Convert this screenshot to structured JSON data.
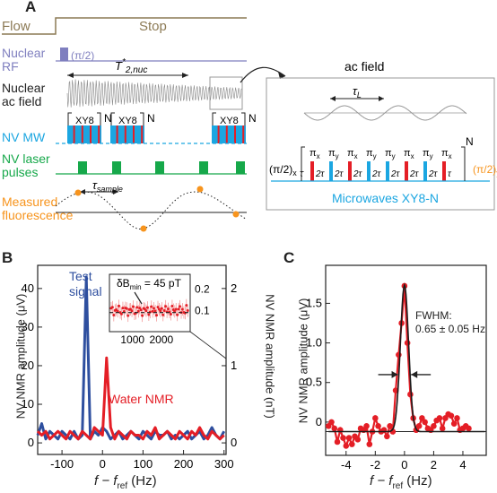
{
  "colors": {
    "nuclear_rf": "#7f7fbf",
    "nv_mw": "#1ba6e1",
    "laser": "#16a84a",
    "fluor": "#f7941d",
    "red": "#e41e26",
    "blue": "#2e4f9f",
    "stop": "#8c7a55"
  },
  "panel_a": {
    "label": "A",
    "flow": "Flow",
    "stop": "Stop",
    "rows": {
      "rf": [
        "Nuclear",
        "RF"
      ],
      "ac": [
        "Nuclear",
        "ac field"
      ],
      "mw": "NV MW",
      "laser": [
        "NV laser",
        "pulses"
      ],
      "fluor": [
        "Measured",
        "fluorescence"
      ]
    },
    "t2_label": "T",
    "t2_sup": "*",
    "t2_sub": "2,nuc",
    "pi2": "(π/2)",
    "xy8": "XY8",
    "n": "N",
    "tau_sample": "τ",
    "tau_sample_sub": "sample"
  },
  "inset_a": {
    "title": "ac field",
    "tau_l": "τ",
    "tau_l_sub": "L",
    "sequence_caption": "Microwaves XY8-N",
    "pulses": [
      "π",
      "π",
      "π",
      "π",
      "π",
      "π",
      "π",
      "π"
    ],
    "pulse_axes": [
      "x",
      "y",
      "x",
      "y",
      "y",
      "x",
      "y",
      "x"
    ],
    "tau": "τ",
    "two_tau": "2τ",
    "pi2x": "(π/2)x",
    "pi2y": "(π/2)y",
    "n": "N"
  },
  "panel_b": {
    "label": "B",
    "ylabel_left": "NV NMR amplitude (μV)",
    "ylabel_right": "NV NMR amplitude (nT)",
    "xlabel": "f − f",
    "xlabel_sub": "ref",
    "xlabel_unit": " (Hz)",
    "legend_test": [
      "Test",
      "signal"
    ],
    "legend_water": "Water NMR",
    "inset_label": "δB",
    "inset_label_sub": "min",
    "inset_label_value": " = 45 pT",
    "inset_xticks": [
      "1000",
      "2000"
    ],
    "inset_yticks": [
      "0.1",
      "0.2"
    ]
  },
  "panel_c": {
    "label": "C",
    "ylabel": "NV NMR amplitude (μV)",
    "xlabel": "f − f",
    "xlabel_sub": "ref",
    "xlabel_unit": " (Hz)",
    "fwhm_label": "FWHM:",
    "fwhm_value": "0.65 ± 0.05 Hz"
  },
  "chart_data": [
    {
      "type": "line",
      "id": "B",
      "xlim": [
        -160,
        305
      ],
      "ylim_left": [
        -3,
        46
      ],
      "ylim_right": [
        -0.15,
        2.3
      ],
      "xticks": [
        -100,
        0,
        100,
        200,
        300
      ],
      "yticks_left": [
        0,
        10,
        20,
        30,
        40
      ],
      "yticks_right": [
        0,
        1,
        2
      ],
      "series": [
        {
          "name": "Test signal",
          "color": "#2e4f9f",
          "x": [
            -160,
            -150,
            -140,
            -130,
            -120,
            -110,
            -100,
            -90,
            -80,
            -70,
            -60,
            -50,
            -40,
            -30,
            -20,
            -10,
            0,
            10,
            20,
            30,
            40,
            50,
            60,
            70,
            80,
            90,
            100,
            110,
            120,
            130,
            140,
            150,
            160,
            170,
            180,
            190,
            200,
            210,
            220,
            230,
            240,
            250,
            260,
            270,
            280,
            290,
            300
          ],
          "y": [
            2,
            5,
            1,
            3,
            2,
            1,
            3,
            2,
            1,
            3,
            1,
            2,
            43,
            1,
            3,
            2,
            4,
            3,
            1,
            2,
            3,
            1,
            2,
            3,
            2,
            1,
            3,
            2,
            1,
            3,
            2,
            2,
            3,
            1,
            2,
            1,
            2,
            3,
            1,
            2,
            3,
            1,
            2,
            4,
            2,
            1,
            3
          ]
        },
        {
          "name": "Water NMR",
          "color": "#e41e26",
          "x": [
            -160,
            -150,
            -140,
            -130,
            -120,
            -110,
            -100,
            -90,
            -80,
            -70,
            -60,
            -50,
            -40,
            -30,
            -20,
            -10,
            0,
            10,
            20,
            30,
            40,
            50,
            60,
            70,
            80,
            90,
            100,
            110,
            120,
            130,
            140,
            150,
            160,
            170,
            180,
            190,
            200,
            210,
            220,
            230,
            240,
            250,
            260,
            270,
            280,
            290,
            300
          ],
          "y": [
            3,
            2,
            3,
            1,
            2,
            3,
            2,
            1,
            3,
            2,
            1,
            3,
            2,
            1,
            4,
            3,
            2,
            22,
            4,
            1,
            3,
            2,
            1,
            3,
            2,
            2,
            1,
            3,
            2,
            4,
            1,
            2,
            3,
            2,
            1,
            3,
            2,
            1,
            3,
            2,
            4,
            2,
            1,
            3,
            2,
            1,
            2
          ]
        }
      ]
    },
    {
      "type": "scatter",
      "id": "B-inset",
      "xlim": [
        200,
        3000
      ],
      "ylim": [
        0,
        0.27
      ],
      "xticks": [
        1000,
        2000
      ],
      "yticks": [
        0.1,
        0.2
      ],
      "mean": 0.1,
      "threshold": 0.09
    },
    {
      "type": "line",
      "id": "C",
      "xlim": [
        -5.4,
        5.6
      ],
      "ylim": [
        -0.42,
        1.98
      ],
      "xticks": [
        -4,
        -2,
        0,
        2,
        4
      ],
      "yticks": [
        0,
        0.5,
        1.0,
        1.5
      ],
      "ytick_labels": [
        "0",
        "0.5",
        "1.0",
        "1.5"
      ],
      "baseline": -0.12,
      "series": [
        {
          "name": "data",
          "color": "#e41e26",
          "x": [
            -5.2,
            -5,
            -4.8,
            -4.6,
            -4.4,
            -4.2,
            -4,
            -3.8,
            -3.6,
            -3.4,
            -3.2,
            -3,
            -2.8,
            -2.6,
            -2.4,
            -2.2,
            -2,
            -1.8,
            -1.6,
            -1.4,
            -1.2,
            -1,
            -0.8,
            -0.6,
            -0.4,
            -0.2,
            0,
            0.2,
            0.4,
            0.6,
            0.8,
            1,
            1.2,
            1.4,
            1.6,
            1.8,
            2,
            2.2,
            2.4,
            2.6,
            2.8,
            3,
            3.2,
            3.4,
            3.6,
            3.8,
            4,
            4.2,
            4.4
          ],
          "y": [
            -0.05,
            0.0,
            -0.08,
            -0.25,
            -0.1,
            -0.2,
            -0.3,
            -0.2,
            -0.28,
            -0.18,
            -0.22,
            -0.08,
            -0.1,
            -0.05,
            -0.28,
            -0.12,
            0.05,
            -0.05,
            -0.12,
            -0.1,
            -0.18,
            -0.05,
            -0.12,
            0.4,
            0.85,
            1.25,
            1.72,
            1.0,
            0.35,
            0.05,
            -0.1,
            -0.05,
            0.05,
            0.0,
            -0.08,
            -0.1,
            -0.05,
            0.02,
            0.05,
            -0.08,
            0.05,
            0.1,
            0.08,
            -0.02,
            0.05,
            -0.1,
            -0.08,
            -0.05,
            -0.08
          ]
        },
        {
          "name": "fit",
          "color": "#1a1a1a",
          "x": [],
          "y": []
        }
      ]
    }
  ]
}
